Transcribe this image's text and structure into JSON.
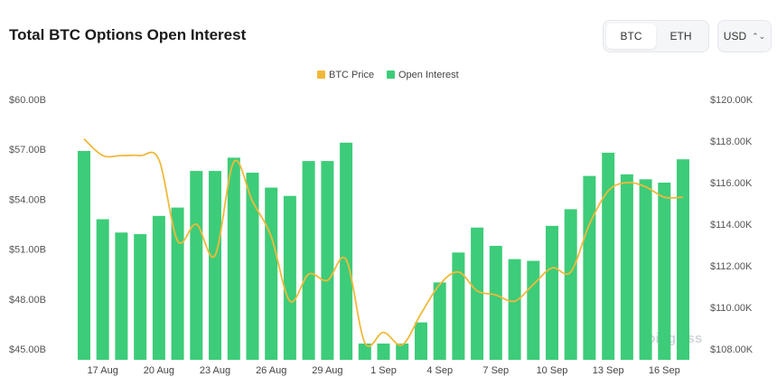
{
  "header": {
    "title": "Total BTC Options Open Interest",
    "asset_options": [
      "BTC",
      "ETH"
    ],
    "active_asset": "BTC",
    "currency": "USD",
    "currency_icon": "chevron-updown-icon"
  },
  "watermark": "coinglass",
  "colors": {
    "bar": "#3dcc79",
    "line": "#f0b93a"
  },
  "chart_data": {
    "type": "bar",
    "legend": [
      "BTC Price",
      "Open Interest"
    ],
    "legend_position": "top-center",
    "x_tick_labels": [
      "17 Aug",
      "20 Aug",
      "23 Aug",
      "26 Aug",
      "29 Aug",
      "1 Sep",
      "4 Sep",
      "7 Sep",
      "10 Sep",
      "13 Sep",
      "16 Sep"
    ],
    "y_left_ticks": [
      "$60.00B",
      "$57.00B",
      "$54.00B",
      "$51.00B",
      "$48.00B",
      "$45.00B"
    ],
    "y_right_ticks": [
      "$120.00K",
      "$118.00K",
      "$116.00K",
      "$114.00K",
      "$112.00K",
      "$110.00K",
      "$108.00K"
    ],
    "ylim_left": [
      45,
      60
    ],
    "ylim_right": [
      108000,
      120000
    ],
    "series": [
      {
        "name": "Open Interest",
        "axis": "left",
        "values": [
          56.9,
          52.8,
          52.0,
          51.9,
          53.0,
          53.5,
          55.7,
          55.7,
          56.5,
          55.6,
          54.7,
          54.2,
          56.3,
          56.3,
          57.4,
          45.3,
          45.0,
          44.8,
          46.6,
          49.0,
          50.8,
          52.3,
          51.2,
          50.4,
          50.3,
          52.4,
          53.4,
          55.4,
          56.8,
          55.5,
          55.2,
          55.0,
          56.4
        ]
      },
      {
        "name": "BTC Price",
        "axis": "right",
        "values": [
          118100,
          117300,
          117300,
          117300,
          117100,
          113200,
          114000,
          112500,
          117000,
          115100,
          113400,
          110300,
          111600,
          111300,
          112300,
          108300,
          108800,
          108200,
          109700,
          111100,
          111700,
          110800,
          110600,
          110300,
          111100,
          111900,
          111700,
          114000,
          115600,
          116000,
          115800,
          115300,
          115300
        ]
      }
    ],
    "grid": false
  }
}
